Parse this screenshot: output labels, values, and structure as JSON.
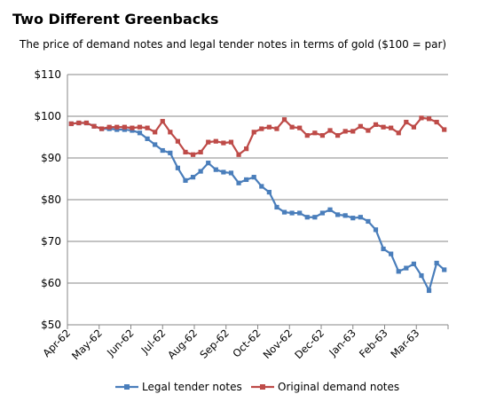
{
  "chart_data": {
    "type": "line",
    "title": "Two Different Greenbacks",
    "subtitle": "The price of demand notes and legal tender notes in terms of gold ($100 = par)",
    "xlabel": "",
    "ylabel": "",
    "ylim": [
      50,
      110
    ],
    "y_ticks": [
      50,
      60,
      70,
      80,
      90,
      100,
      110
    ],
    "y_tick_labels": [
      "$50",
      "$60",
      "$70",
      "$80",
      "$90",
      "$100",
      "$110"
    ],
    "x_tick_labels": [
      "Apr-62",
      "May-62",
      "Jun-62",
      "Jul-62",
      "Aug-62",
      "Sep-62",
      "Oct-62",
      "Nov-62",
      "Dec-62",
      "Jan-63",
      "Feb-63",
      "Mar-63"
    ],
    "grid": "horizontal",
    "legend_position": "bottom",
    "colors": {
      "legal": "#4a7ebb",
      "demand": "#be4b48",
      "grid": "#878787",
      "axis": "#878787"
    },
    "series": [
      {
        "name": "Legal tender notes",
        "color_key": "legal",
        "marker": "square",
        "values": [
          98.2,
          98.4,
          98.4,
          97.6,
          97.0,
          97.0,
          96.8,
          96.8,
          96.6,
          96.0,
          94.6,
          93.2,
          91.8,
          91.2,
          87.6,
          84.6,
          85.4,
          86.8,
          88.8,
          87.2,
          86.6,
          86.4,
          84.0,
          84.8,
          85.4,
          83.2,
          81.8,
          78.2,
          77.0,
          76.8,
          76.8,
          75.8,
          75.8,
          76.8,
          77.6,
          76.4,
          76.2,
          75.6,
          75.8,
          74.8,
          72.8,
          68.2,
          67.0,
          62.8,
          63.6,
          64.6,
          61.8,
          58.2,
          64.8,
          63.2
        ]
      },
      {
        "name": "Original demand notes",
        "color_key": "demand",
        "marker": "square",
        "values": [
          98.2,
          98.4,
          98.4,
          97.6,
          97.0,
          97.4,
          97.4,
          97.4,
          97.2,
          97.4,
          97.2,
          96.2,
          98.8,
          96.2,
          94.0,
          91.4,
          90.8,
          91.4,
          93.8,
          94.0,
          93.6,
          93.8,
          90.8,
          92.2,
          96.2,
          97.0,
          97.4,
          97.0,
          99.2,
          97.4,
          97.2,
          95.4,
          96.0,
          95.4,
          96.6,
          95.4,
          96.4,
          96.4,
          97.6,
          96.6,
          98.0,
          97.4,
          97.2,
          96.0,
          98.6,
          97.4,
          99.6,
          99.4,
          98.6,
          96.8
        ]
      }
    ]
  }
}
